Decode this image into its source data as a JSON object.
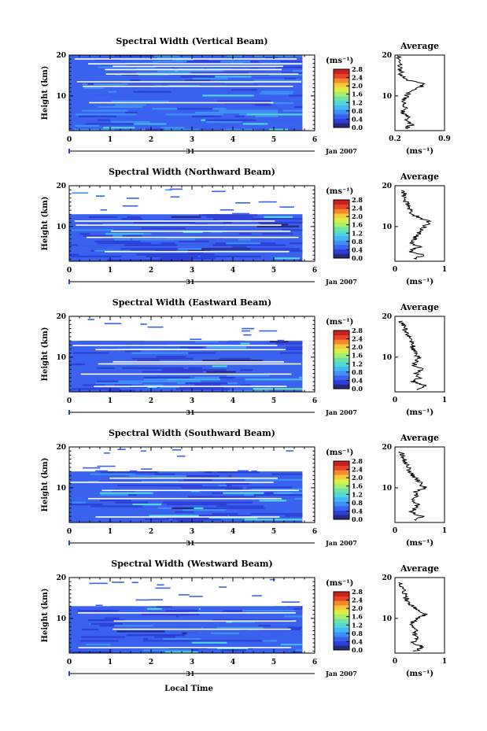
{
  "chart_data": {
    "type": "heatmap",
    "figure": {
      "xlabel": "Local Time",
      "ylabel": "Height (km)",
      "date_label": "Jan 2007",
      "day_label": "31",
      "xlim": [
        0,
        6
      ],
      "x_ticks": [
        "0",
        "1",
        "2",
        "3",
        "4",
        "5",
        "6"
      ],
      "ylim": [
        1.5,
        20
      ],
      "y_ticks": [
        "10",
        "20"
      ],
      "data_x_end": 5.7,
      "colorbar": {
        "unit": "(ms⁻¹)",
        "min": 0,
        "max": 2.8,
        "tick_labels": [
          "0.0",
          "0.4",
          "0.8",
          "1.2",
          "1.6",
          "2.0",
          "2.4",
          "2.8"
        ],
        "colors": [
          "#262a7a",
          "#2d3fd6",
          "#3a62ee",
          "#3f8ff4",
          "#44b7f2",
          "#52d6d6",
          "#6fe3a6",
          "#a8ef70",
          "#dcef49",
          "#f6c83a",
          "#f58a2c",
          "#e8442a",
          "#c8221e"
        ]
      },
      "average_title": "Average",
      "average_xlabel": "(ms⁻¹)"
    },
    "panels": [
      {
        "title": "Spectral Width (Vertical Beam)",
        "avg_xlim": [
          0.2,
          0.9
        ],
        "avg_ticks": [
          "0.2",
          "0.9"
        ],
        "top_km": 20,
        "gaps_km": [
          8.5,
          12.5,
          13.6,
          15.5,
          16.6,
          17.4,
          18.0,
          19.2
        ],
        "base_level": 0.55,
        "avg_profile": {
          "height_km": [
            2,
            3,
            4,
            5,
            6,
            7,
            8,
            9,
            10,
            11,
            12,
            13,
            14,
            15,
            16,
            17,
            18,
            19,
            20
          ],
          "value": [
            0.35,
            0.45,
            0.32,
            0.4,
            0.3,
            0.34,
            0.31,
            0.33,
            0.36,
            0.4,
            0.55,
            0.6,
            0.36,
            0.28,
            0.3,
            0.26,
            0.27,
            0.25,
            0.26
          ]
        }
      },
      {
        "title": "Spectral Width (Northward Beam)",
        "avg_xlim": [
          0,
          1
        ],
        "avg_ticks": [
          "0",
          "1"
        ],
        "top_km": 13,
        "gaps_km": [
          4.0,
          7.5,
          9.0,
          10.5,
          11.5
        ],
        "base_level": 0.45,
        "avg_profile": {
          "height_km": [
            2,
            3,
            4,
            5,
            6,
            7,
            8,
            9,
            10,
            11,
            12,
            13,
            14,
            15,
            16,
            17,
            18,
            19
          ],
          "value": [
            0.42,
            0.55,
            0.3,
            0.48,
            0.35,
            0.4,
            0.45,
            0.52,
            0.6,
            0.72,
            0.55,
            0.35,
            0.3,
            0.25,
            0.22,
            0.2,
            0.18,
            0.15
          ]
        }
      },
      {
        "title": "Spectral Width (Eastward Beam)",
        "avg_xlim": [
          0,
          1
        ],
        "avg_ticks": [
          "0",
          "1"
        ],
        "top_km": 14,
        "gaps_km": [
          3.0,
          6.0,
          8.5,
          9.0,
          12.0,
          13.0
        ],
        "base_level": 0.45,
        "avg_profile": {
          "height_km": [
            2,
            3,
            4,
            5,
            6,
            7,
            8,
            9,
            10,
            11,
            12,
            13,
            14,
            15,
            16,
            17,
            18,
            19
          ],
          "value": [
            0.4,
            0.62,
            0.35,
            0.5,
            0.42,
            0.55,
            0.38,
            0.42,
            0.48,
            0.4,
            0.35,
            0.38,
            0.3,
            0.26,
            0.22,
            0.2,
            0.15,
            0.12
          ]
        }
      },
      {
        "title": "Spectral Width (Southward Beam)",
        "avg_xlim": [
          0,
          1
        ],
        "avg_ticks": [
          "0",
          "1"
        ],
        "top_km": 14,
        "gaps_km": [
          3.0,
          7.5,
          9.5,
          11.5,
          12.5
        ],
        "base_level": 0.45,
        "avg_profile": {
          "height_km": [
            2,
            3,
            4,
            5,
            6,
            7,
            8,
            9,
            10,
            11,
            12,
            13,
            14,
            15,
            16,
            17,
            18,
            19
          ],
          "value": [
            0.4,
            0.55,
            0.32,
            0.4,
            0.45,
            0.38,
            0.42,
            0.4,
            0.6,
            0.52,
            0.45,
            0.35,
            0.3,
            0.28,
            0.22,
            0.18,
            0.15,
            0.12
          ]
        }
      },
      {
        "title": "Spectral Width (Westward Beam)",
        "avg_xlim": [
          0,
          1
        ],
        "avg_ticks": [
          "0",
          "1"
        ],
        "top_km": 13,
        "gaps_km": [
          3.0,
          7.5,
          9.5,
          11.5
        ],
        "base_level": 0.45,
        "avg_profile": {
          "height_km": [
            2,
            3,
            4,
            5,
            6,
            7,
            8,
            9,
            10,
            11,
            12,
            13,
            14,
            15,
            16,
            17,
            18,
            19
          ],
          "value": [
            0.42,
            0.58,
            0.35,
            0.45,
            0.4,
            0.42,
            0.38,
            0.35,
            0.45,
            0.62,
            0.5,
            0.35,
            0.28,
            0.22,
            0.2,
            0.16,
            0.14,
            0.12
          ]
        }
      }
    ]
  }
}
